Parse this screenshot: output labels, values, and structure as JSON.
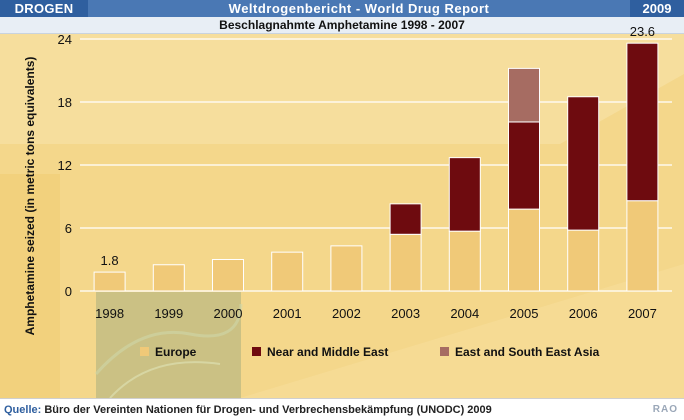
{
  "header": {
    "section": "DROGEN",
    "title": "Weltdrogenbericht - World Drug Report",
    "year": "2009"
  },
  "subtitle": "Beschlagnahmte Amphetamine 1998 - 2007",
  "footer": {
    "source_label": "Quelle:",
    "source_text": "Büro der Vereinten Nationen für Drogen- und Verbrechensbekämpfung (UNODC) 2009",
    "credit": "RAO"
  },
  "colors": {
    "europe": "#f0c978",
    "near_middle_east": "#6e0b0f",
    "east_south_east_asia": "#a66c62"
  },
  "chart_data": {
    "type": "bar",
    "stacked": true,
    "title": "Beschlagnahmte Amphetamine 1998 - 2007",
    "xlabel": "",
    "ylabel": "Amphetamine seized (in metric tons equivalents)",
    "ylim": [
      0,
      24
    ],
    "yticks": [
      0,
      6,
      12,
      18,
      24
    ],
    "categories": [
      "1998",
      "1999",
      "2000",
      "2001",
      "2002",
      "2003",
      "2004",
      "2005",
      "2006",
      "2007"
    ],
    "series": [
      {
        "name": "Europe",
        "values": [
          1.8,
          2.5,
          3.0,
          3.7,
          4.3,
          5.4,
          5.7,
          7.8,
          5.8,
          8.6
        ]
      },
      {
        "name": "Near and Middle East",
        "values": [
          0,
          0,
          0,
          0,
          0,
          2.9,
          7.0,
          8.3,
          12.7,
          15.0
        ]
      },
      {
        "name": "East and South East Asia",
        "values": [
          0,
          0,
          0,
          0,
          0,
          0,
          0,
          5.1,
          0,
          0
        ]
      }
    ],
    "annotations": [
      {
        "category": "1998",
        "label": "1.8"
      },
      {
        "category": "2007",
        "label": "23.6"
      }
    ],
    "legend": [
      "Europe",
      "Near and Middle East",
      "East and South East Asia"
    ],
    "legend_position": "bottom"
  }
}
